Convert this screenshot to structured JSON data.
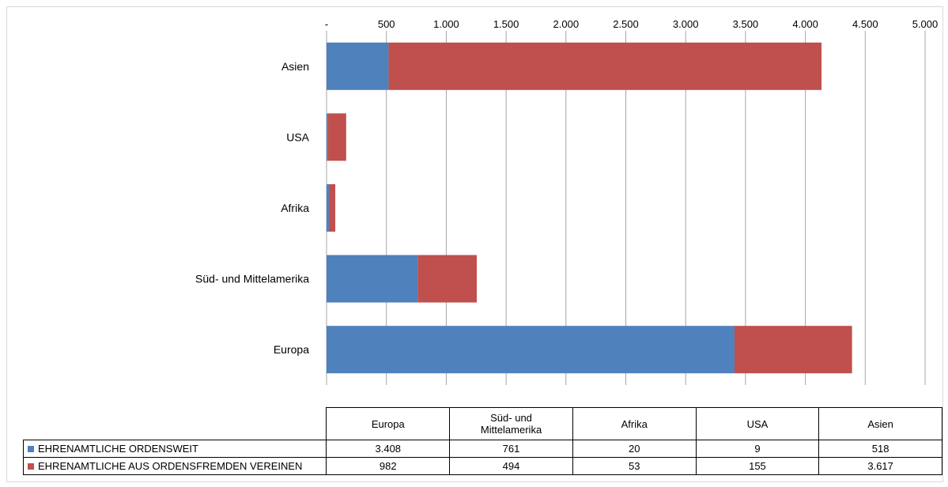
{
  "chart_data": {
    "type": "bar",
    "orientation": "horizontal",
    "stacked": true,
    "categories": [
      "Europa",
      "Süd- und Mittelamerika",
      "Afrika",
      "USA",
      "Asien"
    ],
    "category_labels": [
      "Europa",
      "Süd- und Mittelamerika",
      "Afrika",
      "USA",
      "Asien"
    ],
    "series": [
      {
        "name": "EHRENAMTLICHE ORDENSWEIT",
        "color": "#4f81bd",
        "values": [
          3408,
          761,
          20,
          9,
          518
        ],
        "labels": [
          "3.408",
          "761",
          "20",
          "9",
          "518"
        ]
      },
      {
        "name": "EHRENAMTLICHE AUS ORDENSFREMDEN VEREINEN",
        "color": "#c0504d",
        "values": [
          982,
          494,
          53,
          155,
          3617
        ],
        "labels": [
          "982",
          "494",
          "53",
          "155",
          "3.617"
        ]
      }
    ],
    "xlim": [
      0,
      5000
    ],
    "xticks": [
      0,
      500,
      1000,
      1500,
      2000,
      2500,
      3000,
      3500,
      4000,
      4500,
      5000
    ],
    "xtick_labels": [
      "-",
      "500",
      "1.000",
      "1.500",
      "2.000",
      "2.500",
      "3.000",
      "3.500",
      "4.000",
      "4.500",
      "5.000"
    ],
    "axis_position": "top",
    "grid": "vertical",
    "legend": "data-table",
    "title": "",
    "xlabel": "",
    "ylabel": ""
  }
}
